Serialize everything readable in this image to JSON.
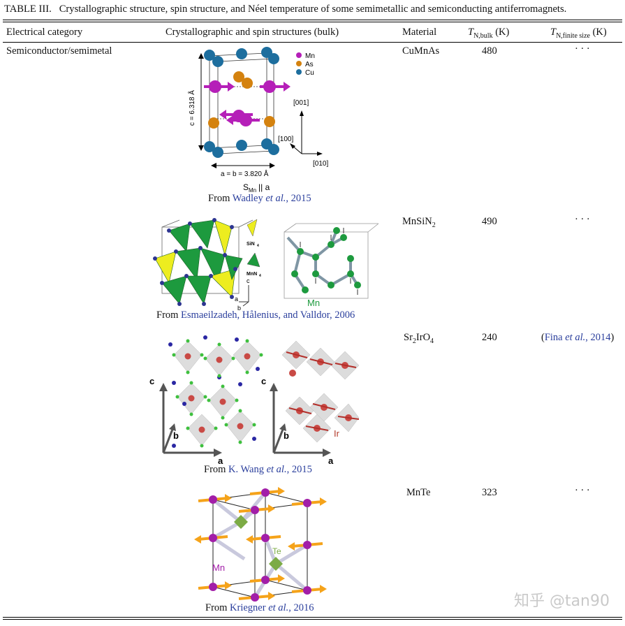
{
  "caption": {
    "label": "TABLE III.",
    "text": "Crystallographic structure, spin structure, and Néel temperature of some semimetallic and semiconducting antiferromagnets."
  },
  "headers": {
    "category": "Electrical category",
    "structure": "Crystallographic and spin structures (bulk)",
    "material": "Material",
    "tbulk_T": "T",
    "tbulk_sub": "N,bulk",
    "tbulk_unit": "(K)",
    "tfinite_T": "T",
    "tfinite_sub": "N,finite size",
    "tfinite_unit": "(K)"
  },
  "rows": [
    {
      "category": "Semiconductor/semimetal",
      "material": "CuMnAs",
      "tbulk": "480",
      "tfinite": "· · ·",
      "credit_from": "From ",
      "credit_link": "Wadley ",
      "credit_etal": "et al.",
      "credit_year": ", 2015",
      "figure": {
        "legend": [
          "Mn",
          "As",
          "Cu"
        ],
        "c_label": "c = 6.318 Å",
        "ab_label": "a = b = 3.820 Å",
        "spin_label_S": "S",
        "spin_label_sub": "Mn",
        "spin_label_rest": " || a",
        "axis_001": "[001]",
        "axis_100": "[100]",
        "axis_010": "[010]"
      }
    },
    {
      "category": "",
      "material_main": "MnSiN",
      "material_sub": "2",
      "tbulk": "490",
      "tfinite": "· · ·",
      "credit_from": "From ",
      "credit_link": "Esmaeilzadeh, Hålenius, and Valldor, 2006",
      "figure": {
        "sin4": "SiN",
        "sin4_sub": "4",
        "mnn4": "MnN",
        "mnn4_sub": "4",
        "c": "c",
        "a": "a",
        "b": "b",
        "mn": "Mn"
      }
    },
    {
      "category": "",
      "material_a": "Sr",
      "material_a_sub": "2",
      "material_b": "IrO",
      "material_b_sub": "4",
      "tbulk": "240",
      "tfinite_open": "(",
      "tfinite_link": "Fina ",
      "tfinite_etal": "et al.",
      "tfinite_year": ", 2014",
      "tfinite_close": ")",
      "credit_from": "From ",
      "credit_link": "K. Wang ",
      "credit_etal": "et al.",
      "credit_year": ", 2015",
      "figure": {
        "c": "c",
        "a": "a",
        "b": "b",
        "ir": "Ir"
      }
    },
    {
      "category": "",
      "material": "MnTe",
      "tbulk": "323",
      "tfinite": "· · ·",
      "credit_from": "From ",
      "credit_link": "Kriegner ",
      "credit_etal": "et al.",
      "credit_year": ", 2016",
      "figure": {
        "mn": "Mn",
        "te": "Te"
      }
    }
  ],
  "watermark": "知乎 @tan90",
  "colors": {
    "mn": "#b51fb8",
    "as": "#d4820f",
    "cu": "#1d6e9e",
    "link": "#2a3e9c",
    "tet_green": "#1d9a3e",
    "tet_yellow": "#eded1f",
    "ir": "#c0392b",
    "te": "#7cab45",
    "spin_orange": "#f5a31a"
  }
}
